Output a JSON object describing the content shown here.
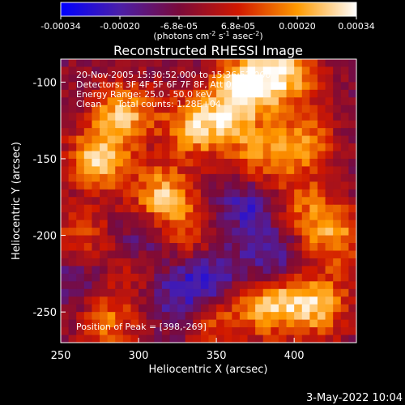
{
  "colorbar": {
    "tick_labels": [
      "-0.00034",
      "-0.00020",
      "-6.8e-05",
      "6.8e-05",
      "0.00020",
      "0.00034"
    ],
    "unit_prefix": "(photons cm",
    "unit_exp1": "-2",
    "unit_mid": " s",
    "unit_exp2": "-1",
    "unit_mid2": " asec",
    "unit_exp3": "-2",
    "unit_suffix": ")",
    "colormap": [
      "#0000ff",
      "#4b1fa8",
      "#7a0a3a",
      "#d01800",
      "#ff9a00",
      "#ffffff"
    ]
  },
  "chart_data": {
    "type": "heatmap",
    "title": "Reconstructed RHESSI Image",
    "xlabel": "Heliocentric X (arcsec)",
    "ylabel": "Heliocentric Y (arcsec)",
    "xlim": [
      250,
      440
    ],
    "ylim": [
      -270,
      -85
    ],
    "x_ticks": [
      "250",
      "300",
      "350",
      "400"
    ],
    "y_ticks": [
      "-100",
      "-150",
      "-200",
      "-250"
    ],
    "value_range": [
      -0.00034,
      0.00034
    ],
    "annotations": [
      "20-Nov-2005 15:30:52.000 to 15:36:52.000",
      "Detectors: 3F 4F 5F 6F 7F 8F, Att 0",
      "Energy Range: 25.0 - 50.0 keV",
      "Clean",
      "Total counts: 1.28E+04"
    ],
    "peak_label": "Position of Peak = [398,-269]",
    "hot_regions": [
      {
        "x": 275,
        "y": -150,
        "level": 0.95
      },
      {
        "x": 290,
        "y": -120,
        "level": 0.85
      },
      {
        "x": 315,
        "y": -175,
        "level": 0.9
      },
      {
        "x": 335,
        "y": -130,
        "level": 0.85
      },
      {
        "x": 370,
        "y": -100,
        "level": 0.95
      },
      {
        "x": 395,
        "y": -95,
        "level": 0.9
      },
      {
        "x": 405,
        "y": -140,
        "level": 0.75
      },
      {
        "x": 375,
        "y": -150,
        "level": 0.6
      },
      {
        "x": 360,
        "y": -120,
        "level": 0.7
      },
      {
        "x": 385,
        "y": -245,
        "level": 0.9
      },
      {
        "x": 415,
        "y": -245,
        "level": 0.9
      },
      {
        "x": 425,
        "y": -200,
        "level": 0.75
      },
      {
        "x": 330,
        "y": -200,
        "level": 0.55
      },
      {
        "x": 300,
        "y": -215,
        "level": 0.55
      },
      {
        "x": 280,
        "y": -255,
        "level": 0.65
      },
      {
        "x": 350,
        "y": -255,
        "level": 0.5
      },
      {
        "x": 405,
        "y": -180,
        "level": 0.5
      },
      {
        "x": 262,
        "y": -200,
        "level": 0.5
      }
    ],
    "cold_regions": [
      {
        "x": 305,
        "y": -205,
        "level": -0.75
      },
      {
        "x": 345,
        "y": -228,
        "level": -0.55
      },
      {
        "x": 370,
        "y": -180,
        "level": -0.5
      },
      {
        "x": 385,
        "y": -215,
        "level": -0.45
      },
      {
        "x": 325,
        "y": -240,
        "level": -0.4
      },
      {
        "x": 260,
        "y": -230,
        "level": -0.35
      }
    ]
  },
  "footer_date": "3-May-2022 10:04"
}
